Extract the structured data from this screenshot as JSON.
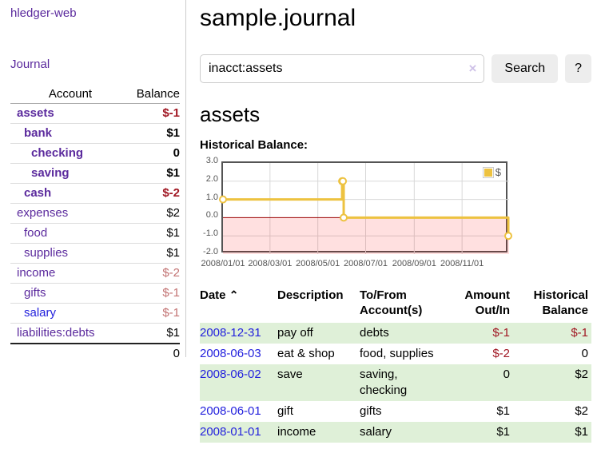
{
  "sidebar": {
    "brand": "hledger-web",
    "nav_journal": "Journal",
    "accounts_header": {
      "account": "Account",
      "balance": "Balance"
    },
    "accounts": [
      {
        "name": "assets",
        "balance": "$-1"
      },
      {
        "name": "bank",
        "balance": "$1"
      },
      {
        "name": "checking",
        "balance": "0"
      },
      {
        "name": "saving",
        "balance": "$1"
      },
      {
        "name": "cash",
        "balance": "$-2"
      },
      {
        "name": "expenses",
        "balance": "$2"
      },
      {
        "name": "food",
        "balance": "$1"
      },
      {
        "name": "supplies",
        "balance": "$1"
      },
      {
        "name": "income",
        "balance": "$-2"
      },
      {
        "name": "gifts",
        "balance": "$-1"
      },
      {
        "name": "salary",
        "balance": "$-1"
      },
      {
        "name": "liabilities:debts",
        "balance": "$1"
      }
    ],
    "total": "0"
  },
  "header": {
    "title": "sample.journal",
    "search": {
      "value": "inacct:assets",
      "clear_icon": "×",
      "search_button": "Search",
      "help_button": "?"
    }
  },
  "account_page": {
    "title": "assets",
    "chart_heading": "Historical Balance:"
  },
  "chart_data": {
    "type": "line",
    "title": "Historical Balance",
    "step": true,
    "series": [
      {
        "name": "$",
        "points": [
          [
            "2008-01-01",
            1
          ],
          [
            "2008-06-01",
            2
          ],
          [
            "2008-06-02",
            2
          ],
          [
            "2008-06-03",
            0
          ],
          [
            "2008-12-31",
            -1
          ]
        ]
      }
    ],
    "x_range": [
      "2008-01-01",
      "2008-12-31"
    ],
    "x_ticks": [
      "2008/01/01",
      "2008/03/01",
      "2008/05/01",
      "2008/07/01",
      "2008/09/01",
      "2008/11/01"
    ],
    "x_tick_dates": [
      "2008-01-01",
      "2008-03-01",
      "2008-05-01",
      "2008-07-01",
      "2008-09-01",
      "2008-11-01"
    ],
    "y_ticks": [
      "3.0",
      "2.0",
      "1.0",
      "0.0",
      "-1.0",
      "-2.0"
    ],
    "y_tick_values": [
      3,
      2,
      1,
      0,
      -1,
      -2
    ],
    "ylim": [
      -2,
      3
    ],
    "grid": true,
    "legend_label": "$",
    "legend_position": "top-right",
    "line_color": "#edc240",
    "marker_fill": "#ffffff",
    "zero_line_color": "#990000",
    "negative_region_color": "rgba(255,0,0,0.12)",
    "grid_color": "#d8d8d8"
  },
  "register": {
    "sort_icon": "⌃",
    "columns": {
      "date": "Date",
      "description": "Description",
      "tofrom": "To/From Account(s)",
      "amount": "Amount Out/In",
      "balance": "Historical Balance"
    },
    "rows": [
      {
        "date": "2008-12-31",
        "description": "pay off",
        "accounts": "debts",
        "amount": "$-1",
        "balance": "$-1"
      },
      {
        "date": "2008-06-03",
        "description": "eat & shop",
        "accounts": "food, supplies",
        "amount": "$-2",
        "balance": "0"
      },
      {
        "date": "2008-06-02",
        "description": "save",
        "accounts": "saving, checking",
        "amount": "0",
        "balance": "$2"
      },
      {
        "date": "2008-06-01",
        "description": "gift",
        "accounts": "gifts",
        "amount": "$1",
        "balance": "$2"
      },
      {
        "date": "2008-01-01",
        "description": "income",
        "accounts": "salary",
        "amount": "$1",
        "balance": "$1"
      }
    ]
  },
  "colors": {
    "accent_purple": "#5b2a9d",
    "link_blue": "#2321dd",
    "negative_strong": "#a01622",
    "negative_soft": "#c27272",
    "row_green": "#dff0d8",
    "series_gold": "#edc240"
  }
}
